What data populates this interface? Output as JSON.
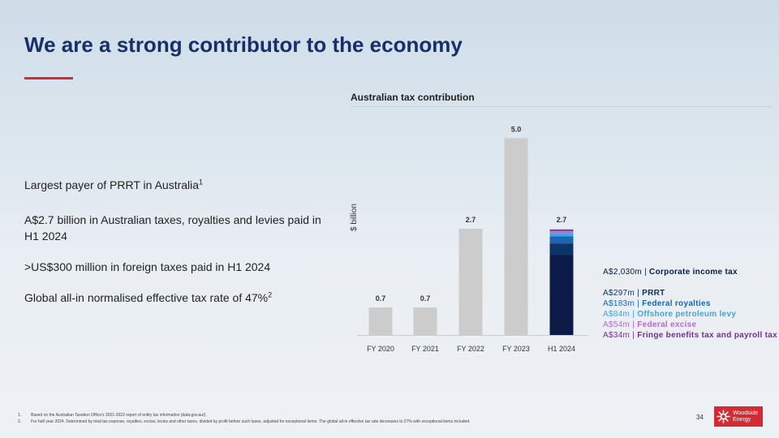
{
  "title": "We are a strong contributor to the economy",
  "points": [
    {
      "text": "Largest payer of PRRT in Australia",
      "sup": "1"
    },
    {
      "text": "A$2.7 billion in Australian taxes, royalties and levies paid in H1 2024",
      "sup": ""
    },
    {
      "text": ">US$300 million in foreign taxes paid in H1 2024",
      "sup": ""
    },
    {
      "text": "Global all-in normalised effective tax rate of 47%",
      "sup": "2"
    }
  ],
  "chart_data": {
    "type": "bar",
    "title": "Australian tax contribution",
    "ylabel": "$ billion",
    "xlabel": "",
    "ylim": [
      0,
      5.4
    ],
    "categories": [
      "FY 2020",
      "FY 2021",
      "FY 2022",
      "FY 2023",
      "H1 2024"
    ],
    "values": [
      0.7,
      0.7,
      2.7,
      5.0,
      2.7
    ],
    "value_labels": [
      "0.7",
      "0.7",
      "2.7",
      "5.0",
      "2.7"
    ],
    "breakdown_category": "H1 2024",
    "breakdown": [
      {
        "amount": "A$2,030m",
        "label": "Corporate income tax",
        "value": 2.03,
        "color": "#0b1a46"
      },
      {
        "amount": "A$297m",
        "label": "PRRT",
        "value": 0.297,
        "color": "#0d3468"
      },
      {
        "amount": "A$183m",
        "label": "Federal royalties",
        "value": 0.183,
        "color": "#1a65b5"
      },
      {
        "amount": "A$84m",
        "label": "Offshore petroleum levy",
        "value": 0.084,
        "color": "#3ea6e0"
      },
      {
        "amount": "A$54m",
        "label": "Federal excise",
        "value": 0.054,
        "color": "#b16fc8"
      },
      {
        "amount": "A$34m",
        "label": "Fringe benefits tax and payroll tax",
        "value": 0.034,
        "color": "#7a2d92"
      }
    ],
    "bar_color": "#cccccc"
  },
  "footnotes": [
    {
      "num": "1.",
      "text": "Based on the Australian Taxation Office's 2021-2022 report of entity tax information (data.gov.au/)."
    },
    {
      "num": "2.",
      "text": "For half year 2024. Determined by total tax expense, royalties, excise, levies and other taxes, divided by profit before such taxes, adjusted for exceptional items. The global all-in effective tax rate decreases to 27% with exceptional items included."
    }
  ],
  "page_number": "34",
  "logo": {
    "line1": "Woodside",
    "line2": "Energy"
  },
  "colors": {
    "title": "#15306b",
    "accent": "#d42a33"
  }
}
